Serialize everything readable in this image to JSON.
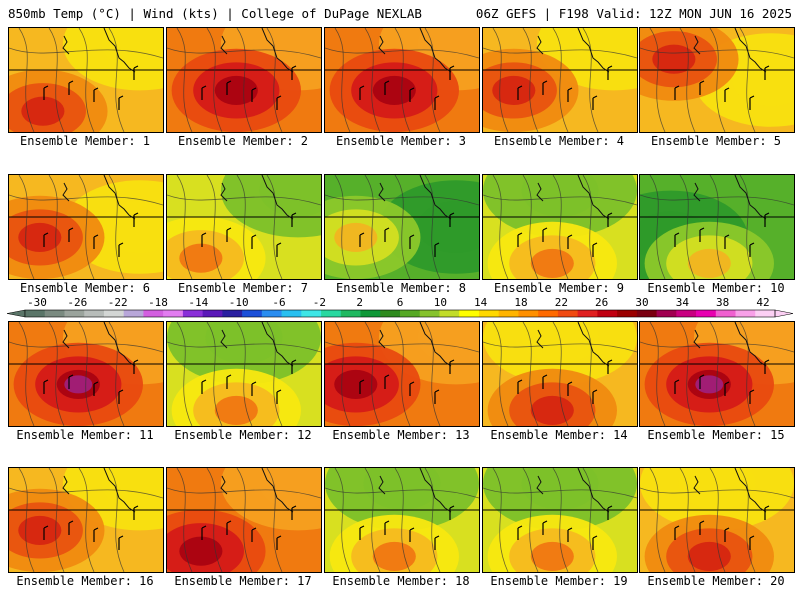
{
  "header": {
    "left": "850mb Temp (°C) | Wind (kts) | College of DuPage NEXLAB",
    "right": "06Z GEFS | F198 Valid: 12Z MON JUN 16 2025"
  },
  "members": [
    {
      "label": "Ensemble Member: 1",
      "dominant": "orange",
      "warm_core": "southwest",
      "cool_area": "northeast"
    },
    {
      "label": "Ensemble Member: 2",
      "dominant": "red",
      "warm_core": "center",
      "cool_area": "northeast"
    },
    {
      "label": "Ensemble Member: 3",
      "dominant": "red",
      "warm_core": "center",
      "cool_area": "northeast"
    },
    {
      "label": "Ensemble Member: 4",
      "dominant": "orange",
      "warm_core": "west",
      "cool_area": "northeast"
    },
    {
      "label": "Ensemble Member: 5",
      "dominant": "orange",
      "warm_core": "northwest",
      "cool_area": "east"
    },
    {
      "label": "Ensemble Member: 6",
      "dominant": "orange",
      "warm_core": "west",
      "cool_area": "east"
    },
    {
      "label": "Ensemble Member: 7",
      "dominant": "yellow",
      "warm_core": "southwest",
      "cool_area": "northeast"
    },
    {
      "label": "Ensemble Member: 8",
      "dominant": "green",
      "warm_core": "west",
      "cool_area": "east"
    },
    {
      "label": "Ensemble Member: 9",
      "dominant": "yellow",
      "warm_core": "south",
      "cool_area": "north"
    },
    {
      "label": "Ensemble Member: 10",
      "dominant": "green",
      "warm_core": "south",
      "cool_area": "west"
    },
    {
      "label": "Ensemble Member: 11",
      "dominant": "red",
      "warm_core": "center",
      "cool_area": "northeast"
    },
    {
      "label": "Ensemble Member: 12",
      "dominant": "yellow",
      "warm_core": "south",
      "cool_area": "north"
    },
    {
      "label": "Ensemble Member: 13",
      "dominant": "red",
      "warm_core": "west",
      "cool_area": "northeast"
    },
    {
      "label": "Ensemble Member: 14",
      "dominant": "orange",
      "warm_core": "south",
      "cool_area": "north"
    },
    {
      "label": "Ensemble Member: 15",
      "dominant": "red",
      "warm_core": "center",
      "cool_area": "northeast"
    },
    {
      "label": "Ensemble Member: 16",
      "dominant": "orange",
      "warm_core": "west",
      "cool_area": "northeast"
    },
    {
      "label": "Ensemble Member: 17",
      "dominant": "red",
      "warm_core": "southwest",
      "cool_area": "northeast"
    },
    {
      "label": "Ensemble Member: 18",
      "dominant": "yellow",
      "warm_core": "south",
      "cool_area": "north"
    },
    {
      "label": "Ensemble Member: 19",
      "dominant": "yellow",
      "warm_core": "south",
      "cool_area": "north"
    },
    {
      "label": "Ensemble Member: 20",
      "dominant": "orange",
      "warm_core": "south",
      "cool_area": "north"
    }
  ],
  "colorbar": {
    "tick_labels": [
      "-30",
      "-26",
      "-22",
      "-18",
      "-14",
      "-10",
      "-6",
      "-2",
      "2",
      "6",
      "10",
      "14",
      "18",
      "22",
      "26",
      "30",
      "34",
      "38",
      "42"
    ],
    "colors": [
      "#5a7568",
      "#7a8a80",
      "#9aa39c",
      "#b7bcb9",
      "#d3d6d4",
      "#b8a7d9",
      "#d35fe0",
      "#e27cf0",
      "#8a2fd8",
      "#5a18b8",
      "#2a1fa0",
      "#1b4fd8",
      "#2a8df0",
      "#28c0f0",
      "#3ee6e6",
      "#28d8a0",
      "#1fb860",
      "#0e9838",
      "#2e8a1e",
      "#56a824",
      "#86c22c",
      "#c2dc28",
      "#ffff00",
      "#ffd800",
      "#ffb400",
      "#ff9000",
      "#ff6a00",
      "#f04a10",
      "#e02020",
      "#c00010",
      "#9a0000",
      "#7a0010",
      "#a00050",
      "#c80080",
      "#e800b0",
      "#f060d0",
      "#f8a0e8",
      "#fcd0f4"
    ]
  }
}
